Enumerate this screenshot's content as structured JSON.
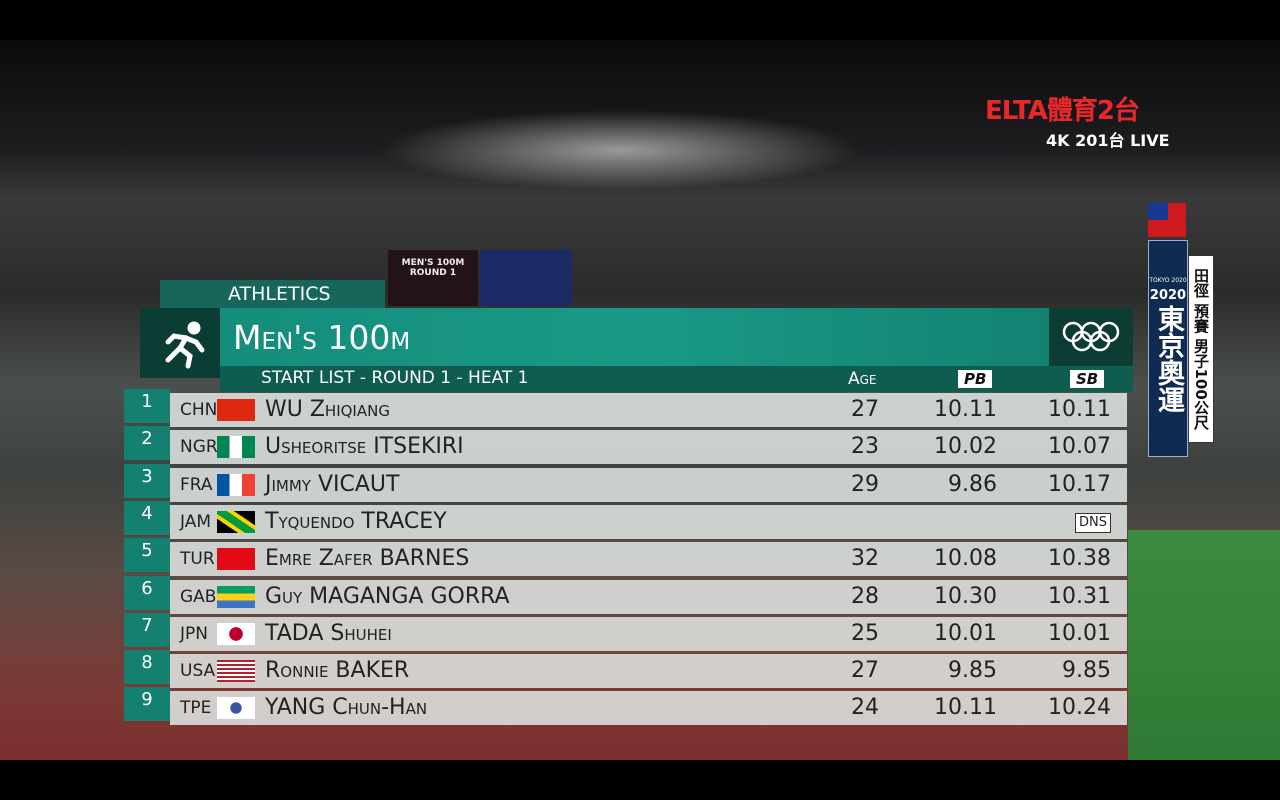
{
  "broadcaster": {
    "logo": "ELTA體育2台",
    "channel": "4K 201台 LIVE"
  },
  "side_banner": {
    "emblem": "TOKYO 2020",
    "year": "2020",
    "event": "東京奧運",
    "detail": "田徑 預賽 男子100公尺"
  },
  "scoreboard": {
    "text": "MEN'S 100M ROUND 1"
  },
  "header": {
    "sport": "ATHLETICS",
    "title": "Men's 100m",
    "subtitle": "START LIST - ROUND 1 - HEAT 1"
  },
  "table": {
    "columns": [
      "Age",
      "PB",
      "SB"
    ],
    "rows": [
      {
        "lane": "1",
        "country": "CHN",
        "name": "WU Zhiqiang",
        "age": "27",
        "pb": "10.11",
        "sb": "10.11"
      },
      {
        "lane": "2",
        "country": "NGR",
        "name": "Usheoritse ITSEKIRI",
        "age": "23",
        "pb": "10.02",
        "sb": "10.07"
      },
      {
        "lane": "3",
        "country": "FRA",
        "name": "Jimmy VICAUT",
        "age": "29",
        "pb": "9.86",
        "sb": "10.17"
      },
      {
        "lane": "4",
        "country": "JAM",
        "name": "Tyquendo TRACEY",
        "sb": "DNS"
      },
      {
        "lane": "5",
        "country": "TUR",
        "name": "Emre Zafer BARNES",
        "age": "32",
        "pb": "10.08",
        "sb": "10.38"
      },
      {
        "lane": "6",
        "country": "GAB",
        "name": "Guy MAGANGA GORRA",
        "age": "28",
        "pb": "10.30",
        "sb": "10.31"
      },
      {
        "lane": "7",
        "country": "JPN",
        "name": "TADA Shuhei",
        "age": "25",
        "pb": "10.01",
        "sb": "10.01"
      },
      {
        "lane": "8",
        "country": "USA",
        "name": "Ronnie BAKER",
        "age": "27",
        "pb": "9.85",
        "sb": "9.85"
      },
      {
        "lane": "9",
        "country": "TPE",
        "name": "YANG Chun-Han",
        "age": "24",
        "pb": "10.11",
        "sb": "10.24"
      }
    ]
  }
}
